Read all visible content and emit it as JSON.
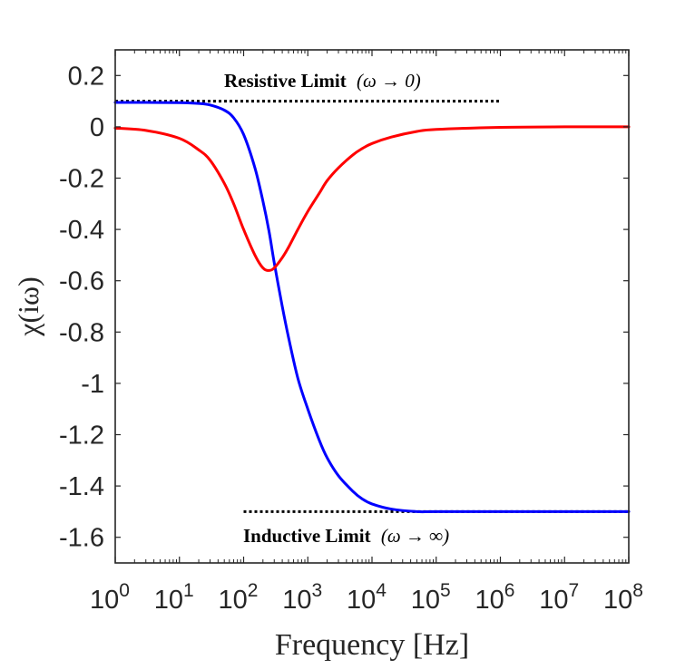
{
  "chart_data": {
    "type": "line",
    "title": "",
    "xlabel": "Frequency [Hz]",
    "ylabel": "χ(iω)",
    "xscale": "log",
    "xlim": [
      1,
      100000000
    ],
    "ylim": [
      -1.7,
      0.3
    ],
    "grid": false,
    "legend": "none",
    "x_ticks": [
      {
        "label": "10",
        "exp": "0",
        "value": 1
      },
      {
        "label": "10",
        "exp": "1",
        "value": 10
      },
      {
        "label": "10",
        "exp": "2",
        "value": 100
      },
      {
        "label": "10",
        "exp": "3",
        "value": 1000
      },
      {
        "label": "10",
        "exp": "4",
        "value": 10000
      },
      {
        "label": "10",
        "exp": "5",
        "value": 100000
      },
      {
        "label": "10",
        "exp": "6",
        "value": 1000000
      },
      {
        "label": "10",
        "exp": "7",
        "value": 10000000
      },
      {
        "label": "10",
        "exp": "8",
        "value": 100000000
      }
    ],
    "y_ticks": [
      {
        "label": "0.2",
        "value": 0.2
      },
      {
        "label": "0",
        "value": 0
      },
      {
        "label": "-0.2",
        "value": -0.2
      },
      {
        "label": "-0.4",
        "value": -0.4
      },
      {
        "label": "-0.6",
        "value": -0.6
      },
      {
        "label": "-0.8",
        "value": -0.8
      },
      {
        "label": "-1",
        "value": -1
      },
      {
        "label": "-1.2",
        "value": -1.2
      },
      {
        "label": "-1.4",
        "value": -1.4
      },
      {
        "label": "-1.6",
        "value": -1.6
      }
    ],
    "series": [
      {
        "color": "#0000ff",
        "x": [
          1,
          3,
          10,
          20,
          30,
          50,
          70,
          100,
          150,
          200,
          250,
          300,
          400,
          500,
          700,
          1000,
          1500,
          2000,
          3000,
          5000,
          7000,
          10000,
          20000,
          50000,
          100000,
          1000000,
          10000000,
          100000000
        ],
        "y": [
          0.095,
          0.095,
          0.094,
          0.091,
          0.085,
          0.065,
          0.035,
          -0.03,
          -0.16,
          -0.29,
          -0.41,
          -0.53,
          -0.7,
          -0.82,
          -0.98,
          -1.1,
          -1.22,
          -1.29,
          -1.36,
          -1.42,
          -1.45,
          -1.47,
          -1.49,
          -1.5,
          -1.5,
          -1.5,
          -1.5,
          -1.5
        ]
      },
      {
        "color": "#ff0000",
        "x": [
          1,
          3,
          10,
          20,
          30,
          50,
          70,
          100,
          150,
          200,
          250,
          300,
          400,
          500,
          700,
          1000,
          1500,
          2000,
          3000,
          5000,
          7000,
          10000,
          20000,
          50000,
          100000,
          1000000,
          10000000,
          100000000
        ],
        "y": [
          -0.005,
          -0.014,
          -0.045,
          -0.09,
          -0.13,
          -0.22,
          -0.3,
          -0.4,
          -0.5,
          -0.55,
          -0.56,
          -0.55,
          -0.51,
          -0.47,
          -0.4,
          -0.33,
          -0.26,
          -0.21,
          -0.16,
          -0.11,
          -0.085,
          -0.065,
          -0.04,
          -0.018,
          -0.01,
          -0.002,
          0,
          0
        ]
      }
    ],
    "reference_lines": [
      {
        "y": 0.1,
        "x_start": 1,
        "x_end": 1000000,
        "style": "dotted",
        "color": "#000000"
      },
      {
        "y": -1.5,
        "x_start": 100,
        "x_end": 100000000,
        "style": "dotted",
        "color": "#000000"
      }
    ],
    "annotations": [
      {
        "bold": "Resistive Limit",
        "expr": "(ω → 0)"
      },
      {
        "bold": "Inductive Limit",
        "expr": "(ω → ∞)"
      }
    ]
  }
}
